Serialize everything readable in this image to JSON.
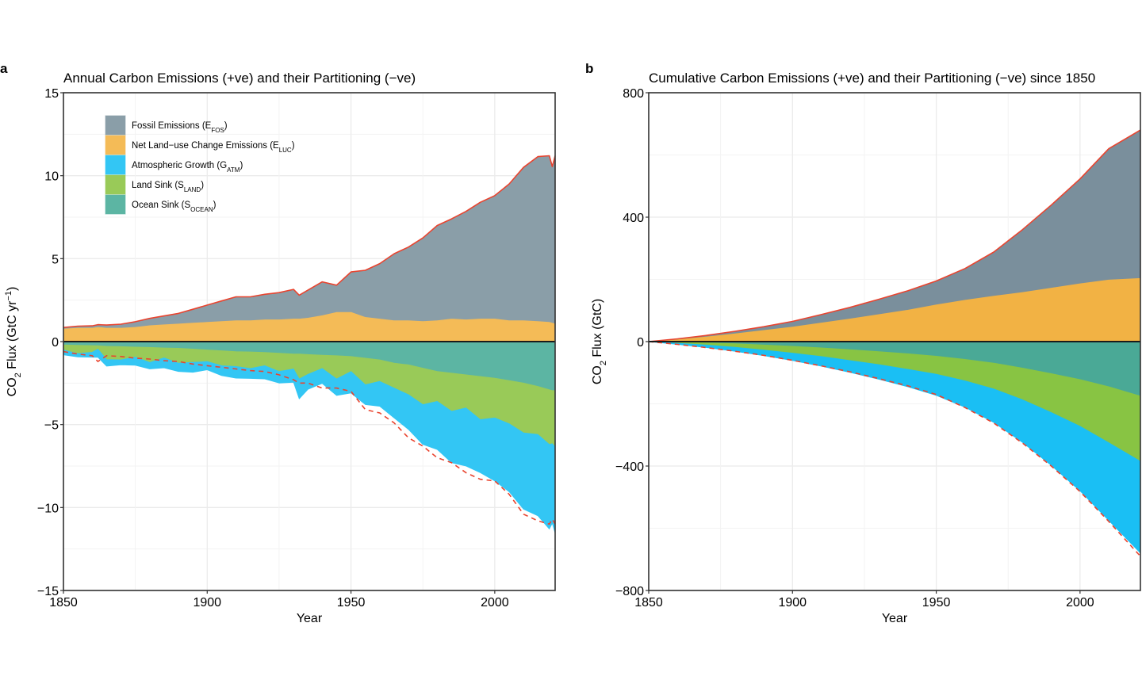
{
  "chart_data": [
    {
      "type": "area",
      "panel_letter": "a",
      "title": "Annual Carbon Emissions (+ve) and their Partitioning (−ve)",
      "xlabel": "Year",
      "ylabel": "CO₂ Flux (GtC yr⁻¹)",
      "ylabel_parts": {
        "main": "CO",
        "sub": "2",
        "rest": " Flux (GtC yr",
        "sup": "−1",
        "end": ")"
      },
      "xlim": [
        1850,
        2021
      ],
      "ylim": [
        -15,
        15
      ],
      "xticks": [
        1850,
        1900,
        1950,
        2000
      ],
      "yticks": [
        15,
        10,
        5,
        0,
        -5,
        -10,
        -15
      ],
      "ytick_labels": [
        "15",
        "10",
        "5",
        "0",
        "−5",
        "−10",
        "−15"
      ],
      "grid": true,
      "legend_position": "top-left",
      "legend": [
        {
          "label": "Fossil Emissions (E",
          "sub": "FOS",
          "end": ")",
          "color": "#8a9ea8"
        },
        {
          "label": "Net Land−use Change Emissions (E",
          "sub": "LUC",
          "end": ")",
          "color": "#f4bb57"
        },
        {
          "label": "Atmospheric Growth (G",
          "sub": "ATM",
          "end": ")",
          "color": "#33c6f4"
        },
        {
          "label": "Land Sink (S",
          "sub": "LAND",
          "end": ")",
          "color": "#99ca58"
        },
        {
          "label": "Ocean Sink (S",
          "sub": "OCEAN",
          "end": ")",
          "color": "#5cb5a3"
        }
      ],
      "x": [
        1850,
        1855,
        1860,
        1862,
        1865,
        1870,
        1875,
        1880,
        1885,
        1890,
        1895,
        1900,
        1905,
        1910,
        1915,
        1920,
        1925,
        1930,
        1932,
        1935,
        1940,
        1945,
        1950,
        1955,
        1960,
        1965,
        1970,
        1975,
        1980,
        1985,
        1990,
        1995,
        2000,
        2005,
        2010,
        2015,
        2019,
        2020,
        2021
      ],
      "series": [
        {
          "name": "Fossil Emissions",
          "color": "#8a9ea8",
          "values": [
            0.05,
            0.08,
            0.1,
            0.12,
            0.15,
            0.2,
            0.3,
            0.4,
            0.5,
            0.6,
            0.8,
            1.0,
            1.2,
            1.4,
            1.4,
            1.5,
            1.6,
            1.75,
            1.4,
            1.65,
            2.0,
            1.6,
            2.4,
            2.8,
            3.3,
            4.0,
            4.4,
            5.0,
            5.7,
            6.0,
            6.5,
            7.0,
            7.4,
            8.2,
            9.2,
            9.9,
            10.0,
            9.4,
            10.1
          ]
        },
        {
          "name": "Net Land-use Change Emissions",
          "color": "#f4bb57",
          "values": [
            0.8,
            0.85,
            0.85,
            0.9,
            0.85,
            0.85,
            0.9,
            1.0,
            1.05,
            1.1,
            1.15,
            1.2,
            1.25,
            1.3,
            1.3,
            1.35,
            1.35,
            1.4,
            1.4,
            1.45,
            1.6,
            1.8,
            1.8,
            1.5,
            1.4,
            1.3,
            1.3,
            1.25,
            1.3,
            1.4,
            1.35,
            1.4,
            1.4,
            1.3,
            1.3,
            1.25,
            1.2,
            1.15,
            1.1
          ]
        },
        {
          "name": "Ocean Sink",
          "color": "#5cb5a3",
          "values": [
            -0.2,
            -0.22,
            -0.24,
            -0.25,
            -0.28,
            -0.3,
            -0.33,
            -0.35,
            -0.38,
            -0.4,
            -0.45,
            -0.5,
            -0.55,
            -0.6,
            -0.62,
            -0.65,
            -0.7,
            -0.75,
            -0.75,
            -0.78,
            -0.82,
            -0.85,
            -0.9,
            -1.0,
            -1.1,
            -1.3,
            -1.4,
            -1.6,
            -1.8,
            -1.9,
            -2.0,
            -2.1,
            -2.2,
            -2.35,
            -2.5,
            -2.7,
            -2.9,
            -2.95,
            -2.95
          ]
        },
        {
          "name": "Land Sink",
          "color": "#99ca58",
          "values": [
            -0.3,
            -0.5,
            -0.4,
            -0.2,
            -0.8,
            -0.8,
            -0.6,
            -0.9,
            -0.6,
            -0.9,
            -0.8,
            -0.7,
            -0.9,
            -0.9,
            -1.0,
            -0.8,
            -1.1,
            -0.9,
            -1.5,
            -1.2,
            -0.8,
            -1.4,
            -0.9,
            -1.6,
            -1.3,
            -1.5,
            -1.8,
            -2.2,
            -1.8,
            -2.3,
            -2.0,
            -2.6,
            -2.4,
            -2.6,
            -3.0,
            -2.9,
            -3.3,
            -3.2,
            -3.4
          ]
        },
        {
          "name": "Atmospheric Growth",
          "color": "#33c6f4",
          "values": [
            -0.3,
            -0.2,
            -0.3,
            -0.5,
            -0.4,
            -0.3,
            -0.5,
            -0.4,
            -0.6,
            -0.5,
            -0.6,
            -0.5,
            -0.6,
            -0.7,
            -0.6,
            -0.8,
            -0.7,
            -0.8,
            -1.2,
            -0.9,
            -0.9,
            -1.0,
            -1.3,
            -1.2,
            -1.5,
            -1.8,
            -2.1,
            -2.4,
            -2.9,
            -3.1,
            -3.5,
            -3.2,
            -3.8,
            -4.1,
            -4.6,
            -4.9,
            -5.1,
            -4.8,
            -5.2
          ]
        }
      ],
      "sources_line": {
        "name": "Total Sources",
        "color": "#e9442f",
        "style": "solid"
      },
      "sinks_line": {
        "name": "Total Sinks",
        "color": "#e9442f",
        "style": "dashed",
        "values": [
          -0.6,
          -0.75,
          -0.85,
          -1.2,
          -0.85,
          -0.9,
          -1.0,
          -1.05,
          -1.15,
          -1.2,
          -1.35,
          -1.45,
          -1.55,
          -1.65,
          -1.75,
          -1.8,
          -2.0,
          -2.3,
          -2.5,
          -2.5,
          -2.8,
          -2.8,
          -3.0,
          -4.1,
          -4.3,
          -4.9,
          -5.8,
          -6.3,
          -7.0,
          -7.3,
          -7.9,
          -8.3,
          -8.4,
          -9.2,
          -10.4,
          -10.8,
          -11.0,
          -10.7,
          -11.0
        ]
      }
    },
    {
      "type": "area",
      "panel_letter": "b",
      "title": "Cumulative Carbon Emissions (+ve) and their Partitioning (−ve) since 1850",
      "xlabel": "Year",
      "ylabel": "CO₂ Flux (GtC)",
      "ylabel_parts": {
        "main": "CO",
        "sub": "2",
        "rest": " Flux (GtC)",
        "sup": "",
        "end": ""
      },
      "xlim": [
        1850,
        2021
      ],
      "ylim": [
        -800,
        800
      ],
      "xticks": [
        1850,
        1900,
        1950,
        2000
      ],
      "yticks": [
        800,
        400,
        0,
        -400,
        -800
      ],
      "ytick_labels": [
        "800",
        "400",
        "0",
        "−400",
        "−800"
      ],
      "grid": true,
      "x": [
        1850,
        1860,
        1870,
        1880,
        1890,
        1900,
        1910,
        1920,
        1930,
        1940,
        1950,
        1960,
        1970,
        1980,
        1990,
        2000,
        2010,
        2021
      ],
      "series": [
        {
          "name": "Fossil Emissions",
          "color": "#7a8f9c",
          "values": [
            0,
            1,
            3,
            6,
            10,
            16,
            25,
            35,
            47,
            60,
            75,
            100,
            140,
            200,
            265,
            335,
            420,
            475
          ]
        },
        {
          "name": "Net Land-use Change Emissions",
          "color": "#f2b244",
          "values": [
            0,
            8,
            17,
            27,
            38,
            49,
            62,
            75,
            89,
            103,
            120,
            135,
            148,
            160,
            174,
            188,
            200,
            205
          ]
        },
        {
          "name": "Ocean Sink",
          "color": "#4aa996",
          "values": [
            0,
            -2,
            -4,
            -7,
            -11,
            -15,
            -20,
            -26,
            -32,
            -39,
            -47,
            -57,
            -69,
            -85,
            -103,
            -122,
            -145,
            -175
          ]
        },
        {
          "name": "Land Sink",
          "color": "#88c443",
          "values": [
            0,
            -3,
            -7,
            -11,
            -16,
            -22,
            -28,
            -35,
            -42,
            -50,
            -58,
            -69,
            -83,
            -102,
            -125,
            -150,
            -180,
            -210
          ]
        },
        {
          "name": "Atmospheric Growth",
          "color": "#1abff4",
          "values": [
            0,
            -4,
            -8,
            -13,
            -18,
            -24,
            -31,
            -38,
            -47,
            -56,
            -68,
            -85,
            -108,
            -137,
            -170,
            -208,
            -250,
            -295
          ]
        }
      ],
      "sources_line": {
        "name": "Total Sources",
        "color": "#e9442f",
        "style": "solid"
      },
      "sinks_line": {
        "name": "Total Sinks",
        "color": "#e9442f",
        "style": "dashed",
        "values": [
          0,
          -9,
          -19,
          -31,
          -44,
          -60,
          -78,
          -97,
          -119,
          -142,
          -170,
          -212,
          -262,
          -326,
          -400,
          -482,
          -578,
          -690
        ]
      }
    }
  ]
}
